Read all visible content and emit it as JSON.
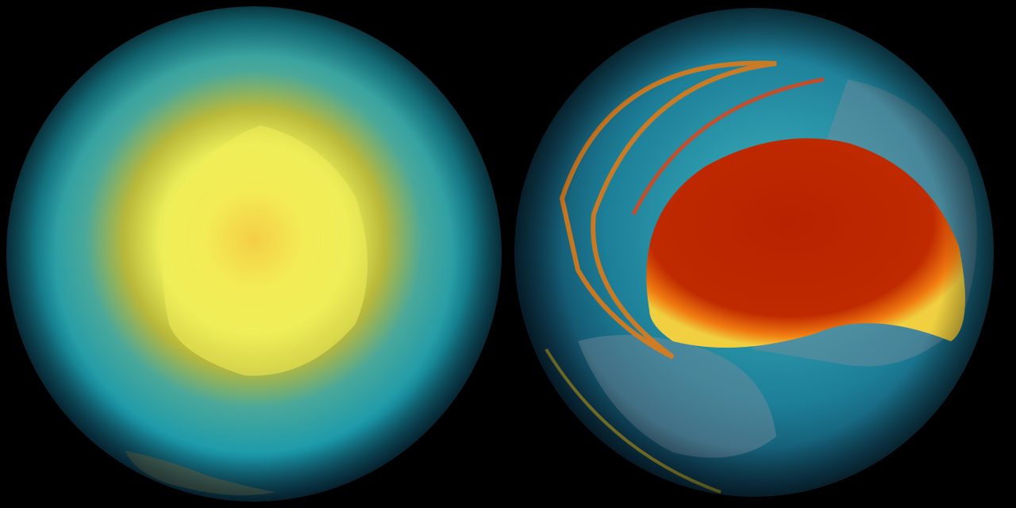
{
  "colors": {
    "background": "#000000",
    "ocean_deep": "#0b3a5a",
    "ocean_teal": "#1fa3b0",
    "band_yellow": "#c8c02a",
    "core_yellow": "#f4f060",
    "core_orange": "#f0a830",
    "hot_red": "#b82200",
    "land_grey": "#8a9aa8"
  },
  "globes": [
    {
      "view": "polar",
      "highlight": "yellow-center"
    },
    {
      "view": "tilted",
      "highlight": "red-plume"
    }
  ]
}
